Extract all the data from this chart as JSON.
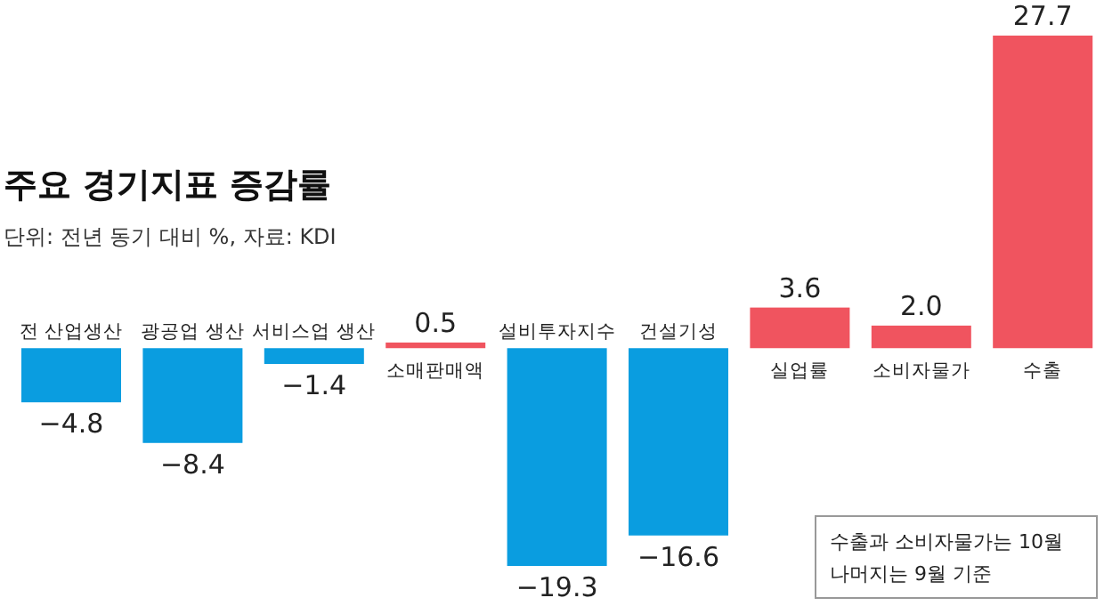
{
  "chart_data": {
    "type": "bar",
    "title": "주요 경기지표 증감률",
    "subtitle": "단위: 전년 동기 대비 %, 자료: KDI",
    "categories": [
      "전 산업생산",
      "광공업 생산",
      "서비스업 생산",
      "소매판매액",
      "설비투자지수",
      "건설기성",
      "실업률",
      "소비자물가",
      "수출"
    ],
    "values": [
      -4.8,
      -8.4,
      -1.4,
      0.5,
      -19.3,
      -16.6,
      3.6,
      2.0,
      27.7
    ],
    "value_labels": [
      "−4.8",
      "−8.4",
      "−1.4",
      "0.5",
      "−19.3",
      "−16.6",
      "3.6",
      "2.0",
      "27.7"
    ],
    "colors": [
      "#0a9de0",
      "#0a9de0",
      "#0a9de0",
      "#f0545f",
      "#0a9de0",
      "#0a9de0",
      "#f0545f",
      "#f0545f",
      "#f0545f"
    ],
    "annotations": [
      "수출과 소비자물가는 10월\n나머지는 9월 기준"
    ]
  }
}
